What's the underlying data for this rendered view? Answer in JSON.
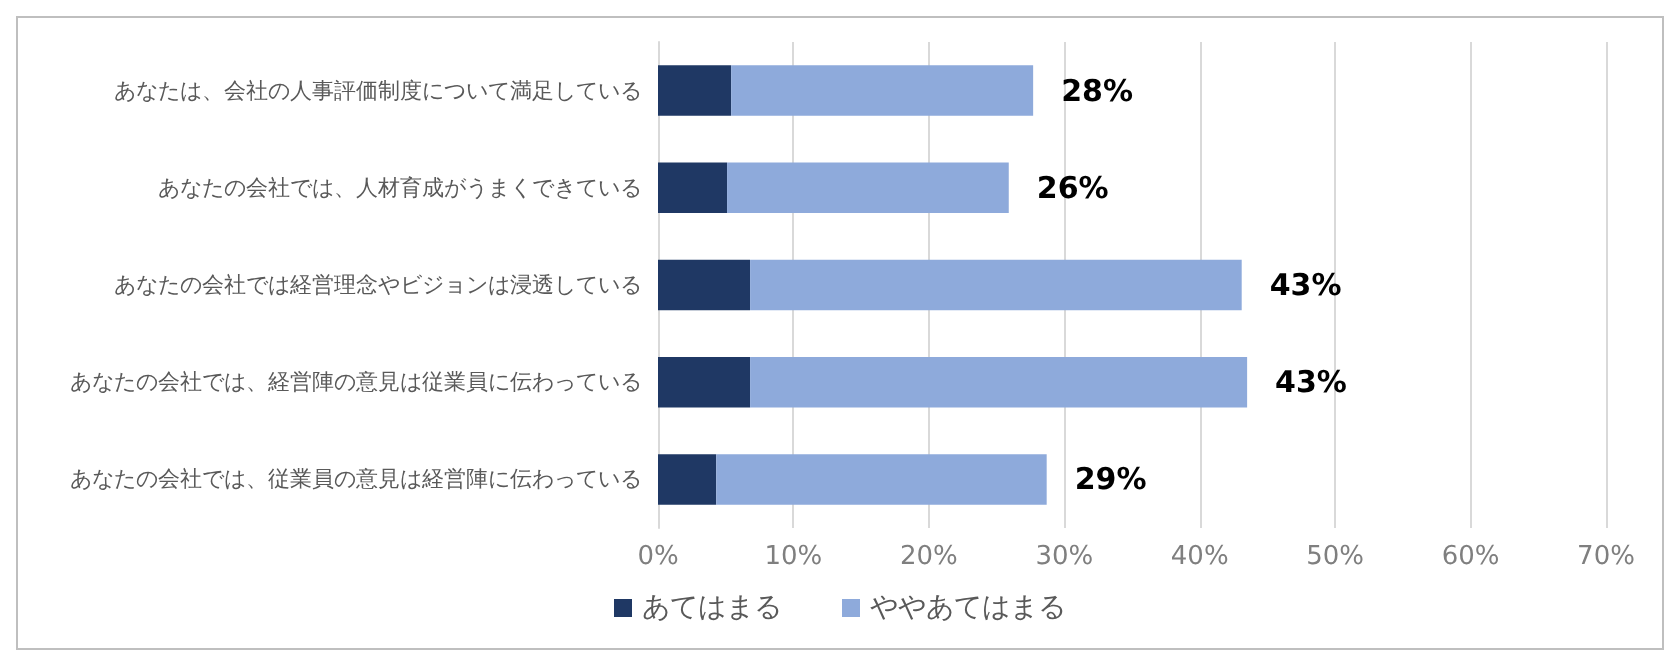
{
  "chart_data": {
    "type": "bar",
    "orientation": "horizontal",
    "stacked": true,
    "categories": [
      "あなたは、会社の人事評価制度について満足している",
      "あなたの会社では、人材育成がうまくできている",
      "あなたの会社では経営理念やビジョンは浸透している",
      "あなたの会社では、経営陣の意見は従業員に伝わっている",
      "あなたの会社では、従業員の意見は経営陣に伝わっている"
    ],
    "series": [
      {
        "name": "あてはまる",
        "color": "#1f3864",
        "values": [
          5.4,
          5.1,
          6.8,
          6.8,
          4.3
        ]
      },
      {
        "name": "ややあてはまる",
        "color": "#8eaadb",
        "values": [
          22.3,
          20.8,
          36.3,
          36.7,
          24.4
        ]
      }
    ],
    "totals": [
      "28%",
      "26%",
      "43%",
      "43%",
      "29%"
    ],
    "xlim": [
      0,
      70
    ],
    "xticks": [
      {
        "value": 0,
        "label": "0%"
      },
      {
        "value": 10,
        "label": "10%"
      },
      {
        "value": 20,
        "label": "20%"
      },
      {
        "value": 30,
        "label": "30%"
      },
      {
        "value": 40,
        "label": "40%"
      },
      {
        "value": 50,
        "label": "50%"
      },
      {
        "value": 60,
        "label": "60%"
      },
      {
        "value": 70,
        "label": "70%"
      }
    ],
    "grid": "x",
    "legend": "bottom"
  }
}
